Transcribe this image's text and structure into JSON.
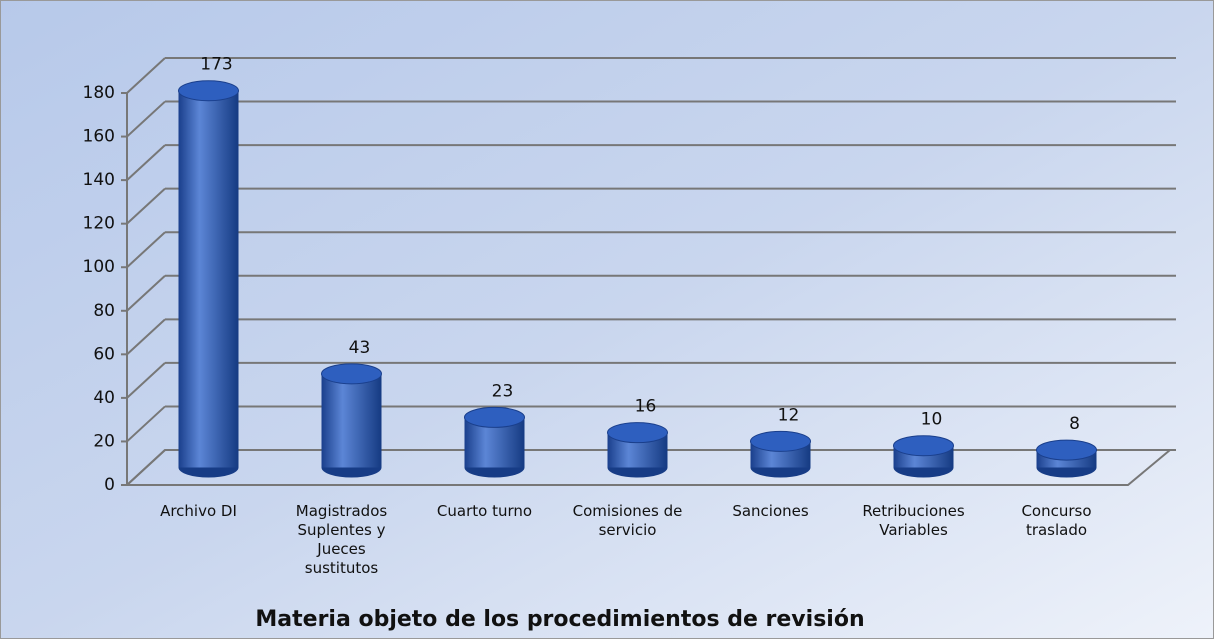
{
  "chart_data": {
    "type": "bar3d",
    "x_label": "Materia objeto de los procedimientos de revisión",
    "categories": [
      "Archivo DI",
      "Magistrados Suplentes y Jueces sustitutos",
      "Cuarto turno",
      "Comisiones de servicio",
      "Sanciones",
      "Retribuciones Variables",
      "Concurso traslado"
    ],
    "values": [
      173,
      43,
      23,
      16,
      12,
      10,
      8
    ],
    "color": "#1f4fa8",
    "ylim": [
      0,
      180
    ],
    "yticks": [
      0,
      20,
      40,
      60,
      80,
      100,
      120,
      140,
      160,
      180
    ],
    "grid": true
  }
}
